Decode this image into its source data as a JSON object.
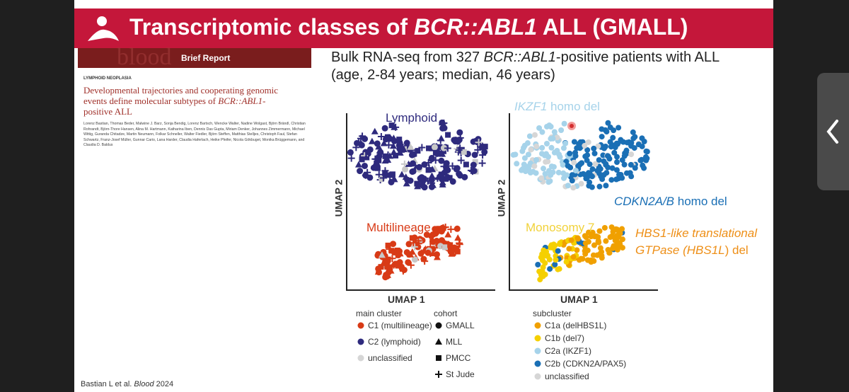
{
  "header": {
    "title": [
      "Transcriptomic classes of ",
      "BCR::ABL1",
      " ALL (GMALL)"
    ]
  },
  "paper": {
    "journal": "blood",
    "section": "Brief Report",
    "category": "LYMPHOID NEOPLASIA",
    "title": [
      "Developmental trajectories and cooperating genomic events define molecular subtypes of ",
      "BCR::ABL1",
      "-positive ALL"
    ],
    "authors": "Lorenz Bastian, Thomas Beder, Malwine J. Barz, Sonja Bendig, Lorenz Bartsch, Wencke Walter, Nadine Wolgast, Björn Brändl, Christian Rohrandt, Björn-Thore Hansen, Alina M. Hartmann, Katharina Iben, Dennis Das Gupta, Miriam Denker, Johannes Zimmermann, Michael Wittig, Guranda Chitadze, Martin Neumann, Folkar Schneller, Walter Fiedler, Björn Steffen, Matthias Stelljes, Christoph Faul, Stefan Schwartz, Franz-Josef Müller, Gunnar Cario, Lana Harder, Claudia Haferlach, Heike Pfeifer, Nicola Gökbuget, Monika Brüggemann, and Claudia D. Baldus"
  },
  "summary": {
    "line1": [
      "Bulk RNA-seq from 327 ",
      "BCR::ABL1",
      "-positive patients with ALL"
    ],
    "line2": "(age, 2-84 years; median, 46 years)"
  },
  "plot_left": {
    "x_label": "UMAP 1",
    "y_label": "UMAP 2",
    "labels": [
      "Lymphoid",
      "Multilineage"
    ]
  },
  "plot_right": {
    "x_label": "UMAP 1",
    "y_label": "UMAP 2",
    "labels": {
      "ikzf1": [
        "IKZF1",
        " homo del"
      ],
      "cdkn2a": [
        "CDKN2A/B",
        " homo del"
      ],
      "mono7": "Monosomy 7",
      "hbs1l": [
        "HBS1-like translational",
        "GTPase (",
        "HBS1L",
        ") del"
      ]
    }
  },
  "legend_main": {
    "title": "main cluster",
    "items": [
      "C1 (multilineage)",
      "C2 (lymphoid)",
      "unclassified"
    ]
  },
  "legend_cohort": {
    "title": "cohort",
    "items": [
      "GMALL",
      "MLL",
      "PMCC",
      "St Jude"
    ]
  },
  "legend_sub": {
    "title": "subcluster",
    "items": [
      "C1a (delHBS1L)",
      "C1b (del7)",
      "C2a (IKZF1)",
      "C2b (CDKN2A/PAX5)",
      "unclassified"
    ]
  },
  "footer": {
    "citation": [
      "Bastian L et al. ",
      "Blood",
      " 2024"
    ]
  }
}
